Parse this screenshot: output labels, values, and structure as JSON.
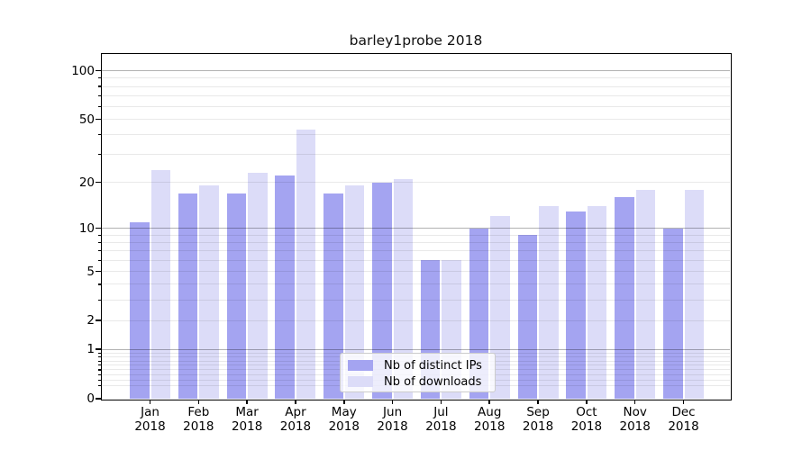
{
  "figure": {
    "background": "#ffffff"
  },
  "chart_data": {
    "type": "bar",
    "title": "barley1probe 2018",
    "year_label": "2018",
    "categories": [
      "Jan",
      "Feb",
      "Mar",
      "Apr",
      "May",
      "Jun",
      "Jul",
      "Aug",
      "Sep",
      "Oct",
      "Nov",
      "Dec"
    ],
    "series": [
      {
        "name": "Nb of distinct IPs",
        "color": "#a4a4f1",
        "values": [
          11,
          17,
          17,
          22,
          17,
          20,
          6,
          10,
          9,
          13,
          16,
          10
        ]
      },
      {
        "name": "Nb of downloads",
        "color": "#dcdcf8",
        "values": [
          24,
          19,
          23,
          43,
          19,
          21,
          6,
          12,
          14,
          14,
          18,
          18
        ]
      }
    ],
    "y_axis": {
      "scale": "log10(1+x)",
      "tick_values": [
        0,
        1,
        2,
        5,
        10,
        20,
        50,
        100
      ],
      "tick_labels": [
        "0",
        "1",
        "2",
        "5",
        "10",
        "20",
        "50",
        "100"
      ],
      "minor_grid_values": [
        0.2,
        0.3,
        0.4,
        0.5,
        0.6,
        0.7,
        0.8,
        0.9,
        2,
        3,
        4,
        5,
        6,
        7,
        8,
        9,
        20,
        30,
        40,
        50,
        60,
        70,
        80,
        90
      ],
      "major_grid_values": [
        1,
        10,
        100
      ],
      "ylim": [
        0,
        127
      ]
    },
    "grid": true,
    "legend_position": "lower center",
    "colors": {
      "frame": "#000000",
      "minor_grid": "rgba(0,0,0,0.085)",
      "major_grid": "rgba(0,0,0,0.30)",
      "legend_border": "#cccccc",
      "legend_background": "rgba(255,255,255,0.8)"
    }
  }
}
